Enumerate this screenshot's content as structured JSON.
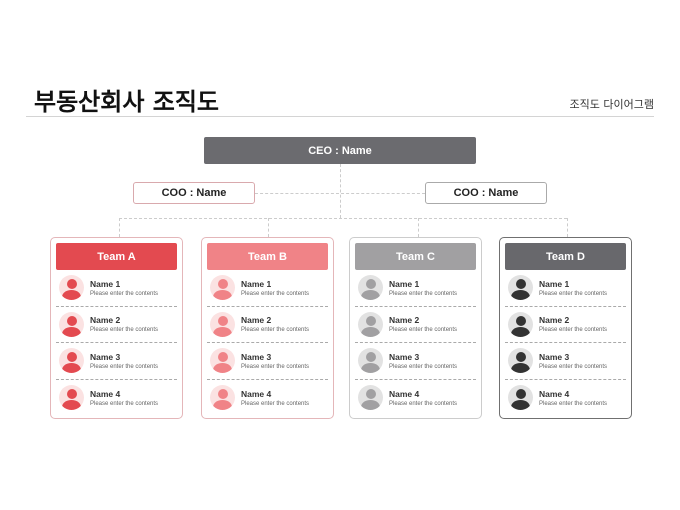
{
  "header": {
    "title": "부동산회사 조직도",
    "subtitle": "조직도 다이어그램"
  },
  "ceo": {
    "label": "CEO : Name"
  },
  "coos": [
    {
      "label": "COO : Name",
      "border": "#d9a9ad"
    },
    {
      "label": "COO : Name",
      "border": "#aaaaaa"
    }
  ],
  "teams": [
    {
      "name": "Team A",
      "color": "#e34a50",
      "border": "#e4b6b9",
      "avatar_bg": "#fbe2e2",
      "avatar_fg": "#e34a50",
      "members": [
        {
          "name": "Name 1",
          "desc": "Please enter the contents"
        },
        {
          "name": "Name 2",
          "desc": "Please enter the contents"
        },
        {
          "name": "Name 3",
          "desc": "Please enter the contents"
        },
        {
          "name": "Name 4",
          "desc": "Please enter the contents"
        }
      ]
    },
    {
      "name": "Team B",
      "color": "#f08387",
      "border": "#e4b6b9",
      "avatar_bg": "#fbe2e2",
      "avatar_fg": "#f08387",
      "members": [
        {
          "name": "Name 1",
          "desc": "Please enter the contents"
        },
        {
          "name": "Name 2",
          "desc": "Please enter the contents"
        },
        {
          "name": "Name 3",
          "desc": "Please enter the contents"
        },
        {
          "name": "Name 4",
          "desc": "Please enter the contents"
        }
      ]
    },
    {
      "name": "Team C",
      "color": "#a1a0a2",
      "border": "#cccccc",
      "avatar_bg": "#e2e2e2",
      "avatar_fg": "#a1a0a2",
      "members": [
        {
          "name": "Name 1",
          "desc": "Please enter the contents"
        },
        {
          "name": "Name 2",
          "desc": "Please enter the contents"
        },
        {
          "name": "Name 3",
          "desc": "Please enter the contents"
        },
        {
          "name": "Name 4",
          "desc": "Please enter the contents"
        }
      ]
    },
    {
      "name": "Team D",
      "color": "#68686c",
      "border": "#707070",
      "avatar_bg": "#e2e2e2",
      "avatar_fg": "#333333",
      "members": [
        {
          "name": "Name 1",
          "desc": "Please enter the contents"
        },
        {
          "name": "Name 2",
          "desc": "Please enter the contents"
        },
        {
          "name": "Name 3",
          "desc": "Please enter the contents"
        },
        {
          "name": "Name 4",
          "desc": "Please enter the contents"
        }
      ]
    }
  ]
}
